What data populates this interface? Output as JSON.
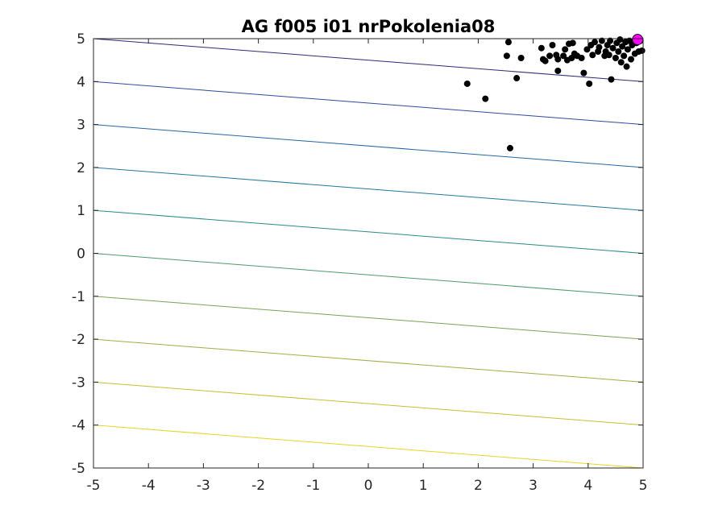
{
  "chart_data": {
    "type": "scatter",
    "title": "AG f005 i01 nrPokolenia08",
    "xlabel": "",
    "ylabel": "",
    "xlim": [
      -5,
      5
    ],
    "ylim": [
      -5,
      5
    ],
    "xticks": [
      "-5",
      "-4",
      "-3",
      "-2",
      "-1",
      "0",
      "1",
      "2",
      "3",
      "4",
      "5"
    ],
    "yticks": [
      "-5",
      "-4",
      "-3",
      "-2",
      "-1",
      "0",
      "1",
      "2",
      "3",
      "4",
      "5"
    ],
    "grid": false,
    "legend": "none",
    "contours": {
      "form": "y + 0.1*x = level",
      "levels": [
        -5.5,
        -4.5,
        -3.5,
        -2.5,
        -1.5,
        -0.5,
        0.5,
        1.5,
        2.5,
        3.5,
        4.5
      ],
      "colors": [
        "#f9e721",
        "#e8d424",
        "#c9be2f",
        "#a4ad44",
        "#79a457",
        "#4c9a6c",
        "#2a8c86",
        "#217a99",
        "#2566a7",
        "#2d4c9c",
        "#2e2a78"
      ]
    },
    "series": [
      {
        "color": "#000000",
        "points": [
          [
            1.8,
            3.95
          ],
          [
            2.13,
            3.6
          ],
          [
            2.58,
            2.45
          ],
          [
            2.55,
            4.92
          ],
          [
            2.52,
            4.6
          ],
          [
            2.7,
            4.08
          ],
          [
            2.78,
            4.55
          ],
          [
            3.15,
            4.78
          ],
          [
            3.18,
            4.52
          ],
          [
            3.22,
            4.48
          ],
          [
            3.3,
            4.6
          ],
          [
            3.35,
            4.85
          ],
          [
            3.42,
            4.62
          ],
          [
            3.45,
            4.25
          ],
          [
            3.45,
            4.52
          ],
          [
            3.55,
            4.6
          ],
          [
            3.58,
            4.75
          ],
          [
            3.62,
            4.5
          ],
          [
            3.65,
            4.88
          ],
          [
            3.7,
            4.55
          ],
          [
            3.72,
            4.9
          ],
          [
            3.75,
            4.65
          ],
          [
            3.8,
            4.6
          ],
          [
            3.88,
            4.55
          ],
          [
            3.92,
            4.2
          ],
          [
            3.98,
            4.75
          ],
          [
            4.02,
            3.95
          ],
          [
            4.05,
            4.85
          ],
          [
            4.08,
            4.62
          ],
          [
            4.12,
            4.92
          ],
          [
            4.18,
            4.7
          ],
          [
            4.2,
            4.8
          ],
          [
            4.25,
            4.95
          ],
          [
            4.3,
            4.6
          ],
          [
            4.32,
            4.7
          ],
          [
            4.35,
            4.85
          ],
          [
            4.38,
            4.62
          ],
          [
            4.4,
            4.95
          ],
          [
            4.42,
            4.05
          ],
          [
            4.45,
            4.78
          ],
          [
            4.5,
            4.55
          ],
          [
            4.52,
            4.9
          ],
          [
            4.55,
            4.7
          ],
          [
            4.58,
            4.98
          ],
          [
            4.6,
            4.45
          ],
          [
            4.62,
            4.82
          ],
          [
            4.65,
            4.6
          ],
          [
            4.68,
            4.92
          ],
          [
            4.7,
            4.35
          ],
          [
            4.72,
            4.75
          ],
          [
            4.75,
            4.95
          ],
          [
            4.78,
            4.52
          ],
          [
            4.8,
            4.85
          ],
          [
            4.85,
            4.65
          ],
          [
            4.88,
            4.9
          ],
          [
            4.92,
            4.7
          ],
          [
            4.95,
            4.95
          ],
          [
            4.98,
            4.72
          ]
        ]
      },
      {
        "color": "#ff00ff",
        "points": [
          [
            4.9,
            4.98
          ]
        ]
      }
    ]
  }
}
